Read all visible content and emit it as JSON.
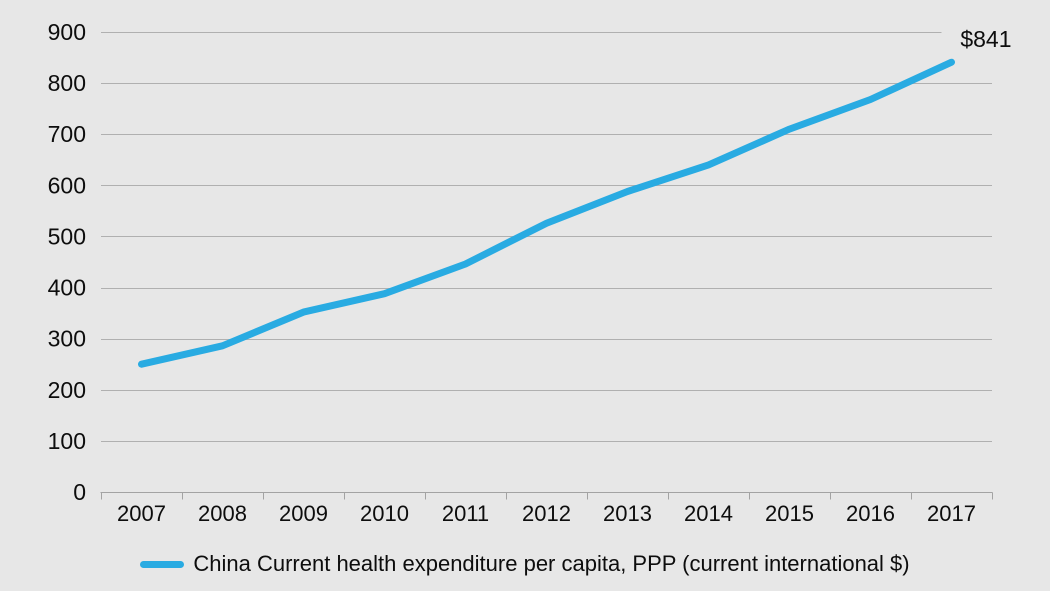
{
  "chart_data": {
    "type": "line",
    "title": "",
    "xlabel": "",
    "ylabel": "",
    "x_labels": [
      "2007",
      "2008",
      "2009",
      "2010",
      "2011",
      "2012",
      "2013",
      "2014",
      "2015",
      "2016",
      "2017"
    ],
    "series": [
      {
        "name": "China Current health expenditure per capita, PPP (current international $)",
        "values": [
          250,
          286,
          352,
          388,
          446,
          526,
          588,
          640,
          710,
          768,
          841
        ]
      }
    ],
    "ylim": [
      0,
      900
    ],
    "y_ticks": [
      0,
      100,
      200,
      300,
      400,
      500,
      600,
      700,
      800,
      900
    ],
    "grid": "horizontal-only",
    "legend_position": "bottom",
    "annotation": {
      "text": "$841",
      "point_index": 10
    }
  },
  "legend": {
    "label": "China Current health expenditure per capita, PPP (current international $)"
  },
  "annotation": {
    "end_value_label": "$841"
  },
  "colors": {
    "background": "#e7e7e7",
    "gridline": "#b0b0b0",
    "axis": "#a3a3a3",
    "series_line": "#29abe2",
    "text": "#0d0d0d"
  }
}
